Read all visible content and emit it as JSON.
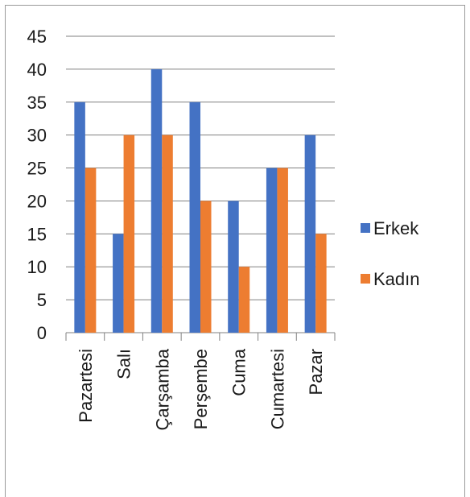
{
  "chart_data": {
    "type": "bar",
    "categories": [
      "Pazartesi",
      "Salı",
      "Çarşamba",
      "Perşembe",
      "Cuma",
      "Cumartesi",
      "Pazar"
    ],
    "series": [
      {
        "name": "Erkek",
        "values": [
          35,
          15,
          40,
          35,
          20,
          25,
          30
        ],
        "color": "#4472C4"
      },
      {
        "name": "Kadın",
        "values": [
          25,
          30,
          30,
          20,
          10,
          25,
          15
        ],
        "color": "#ED7D31"
      }
    ],
    "title": "",
    "xlabel": "",
    "ylabel": "",
    "ylim": [
      0,
      45
    ],
    "yticks": [
      "0",
      "5",
      "10",
      "15",
      "20",
      "25",
      "30",
      "35",
      "40",
      "45"
    ],
    "grid": true,
    "gridline_color": "#808080",
    "legend_position": "right"
  }
}
